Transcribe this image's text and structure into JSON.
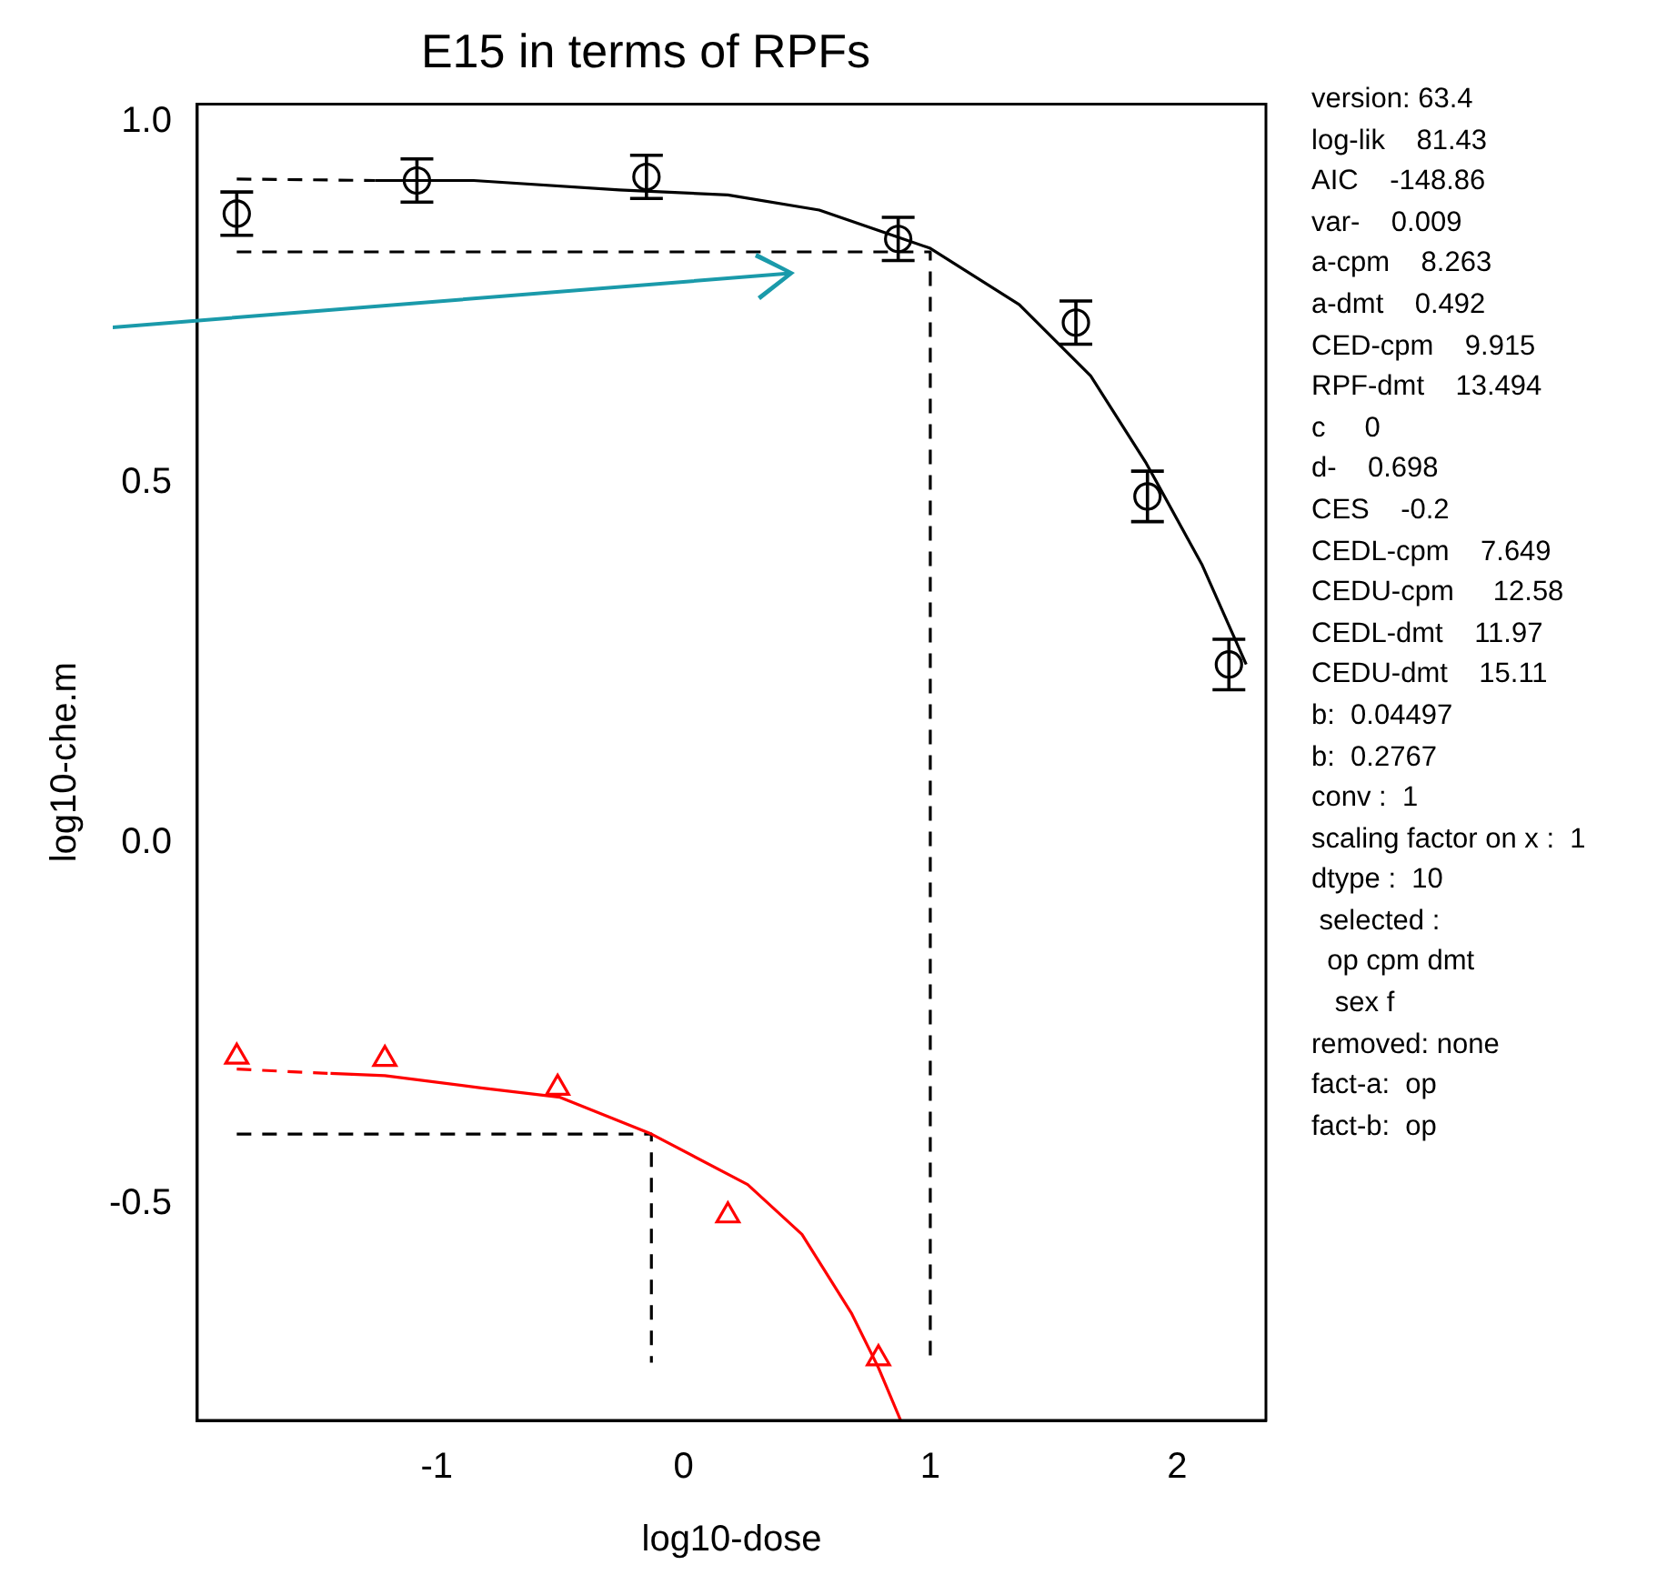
{
  "chart_data": {
    "type": "scatter",
    "title": "E15 in terms of RPFs",
    "xlabel": "log10-dose",
    "ylabel": "log10-che.m",
    "xlim": [
      -1.97,
      2.36
    ],
    "ylim": [
      -0.8,
      1.025
    ],
    "xticks": [
      -1,
      0,
      1,
      2
    ],
    "yticks": [
      {
        "value": -0.5,
        "label": "-0.5"
      },
      {
        "value": 0,
        "label": "0.0"
      },
      {
        "value": 0.5,
        "label": "0.5"
      },
      {
        "value": 1,
        "label": "1.0"
      }
    ],
    "grid": false,
    "legend": false,
    "series": [
      {
        "type": "scatter",
        "color": "#000000",
        "marker": "circle",
        "x": [
          -1.81,
          -1.08,
          -0.15,
          0.87,
          1.59,
          1.88,
          2.21
        ],
        "values": [
          0.873,
          0.919,
          0.924,
          0.838,
          0.722,
          0.481,
          0.248
        ],
        "errors": [
          0.03,
          0.03,
          0.03,
          0.03,
          0.03,
          0.035,
          0.035
        ]
      },
      {
        "type": "line",
        "color": "#000000",
        "marker": "none",
        "line_style": "dashed",
        "x": [
          -1.81,
          -1.25
        ],
        "values": [
          0.921,
          0.919
        ]
      },
      {
        "type": "line",
        "color": "#000000",
        "marker": "none",
        "line_style": "solid",
        "x": [
          -1.25,
          -0.85,
          -0.26,
          0.18,
          0.55,
          1.0,
          1.36,
          1.65,
          1.875,
          2.1,
          2.28
        ],
        "values": [
          0.919,
          0.919,
          0.906,
          0.899,
          0.878,
          0.825,
          0.747,
          0.648,
          0.527,
          0.387,
          0.248
        ]
      },
      {
        "type": "scatter",
        "color": "#ff0000",
        "marker": "triangle",
        "x": [
          -1.81,
          -1.21,
          -0.51,
          0.18,
          0.79
        ],
        "values": [
          -0.296,
          -0.299,
          -0.339,
          -0.516,
          -0.714
        ]
      },
      {
        "type": "line",
        "color": "#ff0000",
        "marker": "none",
        "line_style": "dashed",
        "x": [
          -1.81,
          -1.43
        ],
        "values": [
          -0.313,
          -0.319
        ]
      },
      {
        "type": "line",
        "color": "#ff0000",
        "marker": "none",
        "line_style": "solid",
        "x": [
          -1.43,
          -1.21,
          -0.82,
          -0.5,
          -0.13,
          0.26,
          0.48,
          0.68,
          0.79,
          0.88
        ],
        "values": [
          -0.319,
          -0.322,
          -0.339,
          -0.352,
          -0.403,
          -0.473,
          -0.542,
          -0.651,
          -0.727,
          -0.8
        ]
      },
      {
        "type": "line",
        "color": "#000000",
        "marker": "none",
        "line_style": "dashed",
        "x": [
          -1.81,
          1.0,
          1.0
        ],
        "values": [
          0.82,
          0.82,
          -0.72
        ]
      },
      {
        "type": "line",
        "color": "#000000",
        "marker": "none",
        "line_style": "dashed",
        "x": [
          -1.81,
          -0.13,
          -0.13
        ],
        "values": [
          -0.403,
          -0.403,
          -0.72
        ]
      }
    ],
    "annotations": [
      "version: 63.4",
      "log-lik    81.43",
      "AIC    -148.86",
      "var-    0.009",
      "a-cpm    8.263",
      "a-dmt    0.492",
      "CED-cpm    9.915",
      "RPF-dmt    13.494",
      "c     0",
      "d-    0.698",
      "CES    -0.2",
      "CEDL-cpm    7.649",
      "CEDU-cpm     12.58",
      "CEDL-dmt    11.97",
      "CEDU-dmt    15.11",
      "b:  0.04497",
      "b:  0.2767",
      "conv :  1",
      "scaling factor on x :  1",
      "dtype :  10",
      " selected :",
      "  op cpm dmt",
      "   sex f",
      "removed: none",
      "fact-a:  op",
      "fact-b:  op"
    ]
  }
}
